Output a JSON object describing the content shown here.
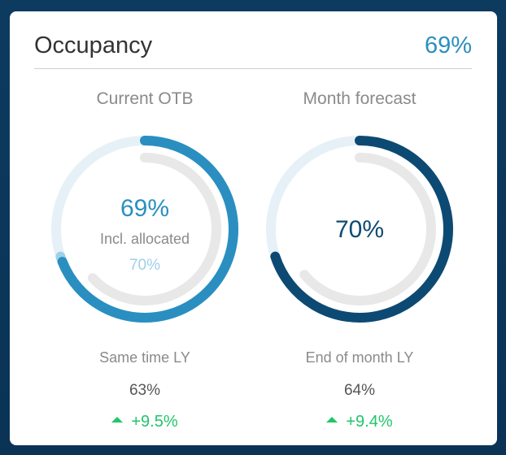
{
  "header": {
    "title": "Occupancy",
    "value": "69%"
  },
  "colors": {
    "primary": "#2a8fc0",
    "dark": "#0d4a73",
    "allocated": "#9fd0ea",
    "track": "#e6f1f7",
    "ly_track": "#e8e8e8",
    "positive": "#22c56a"
  },
  "current": {
    "label": "Current OTB",
    "value": "69%",
    "value_fraction": 0.69,
    "allocated_label": "Incl. allocated",
    "allocated_value": "70%",
    "allocated_fraction": 0.7,
    "ly_fraction": 0.63,
    "ly_label": "Same time LY",
    "ly_value": "63%",
    "delta": "+9.5%",
    "delta_icon": "triangle-up-icon"
  },
  "forecast": {
    "label": "Month forecast",
    "value": "70%",
    "value_fraction": 0.7,
    "ly_fraction": 0.64,
    "ly_label": "End of month LY",
    "ly_value": "64%",
    "delta": "+9.4%",
    "delta_icon": "triangle-up-icon"
  }
}
